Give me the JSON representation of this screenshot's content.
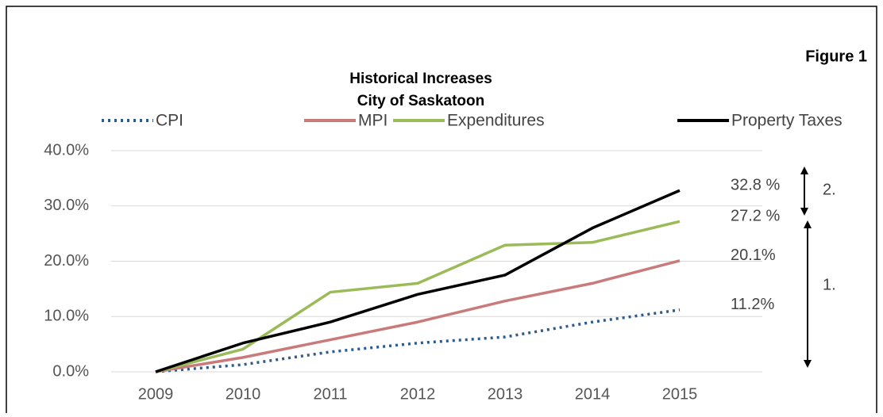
{
  "chart_data": {
    "type": "line",
    "figure_label": "Figure 1",
    "title": "Historical Increases",
    "subtitle": "City of Saskatoon",
    "categories": [
      "2009",
      "2010",
      "2011",
      "2012",
      "2013",
      "2014",
      "2015"
    ],
    "series": [
      {
        "name": "CPI",
        "color": "#2e5a8c",
        "style": "dotted",
        "values": [
          0,
          1.3,
          3.6,
          5.2,
          6.3,
          9.0,
          11.2
        ],
        "value_labels": [
          null,
          null,
          null,
          null,
          null,
          null,
          "11.2%"
        ]
      },
      {
        "name": "MPI",
        "color": "#c97b7b",
        "style": "solid",
        "values": [
          0,
          2.6,
          5.8,
          9.0,
          12.8,
          16.0,
          20.1
        ],
        "value_labels": [
          null,
          null,
          null,
          null,
          null,
          null,
          "20.1%"
        ]
      },
      {
        "name": "Expenditures",
        "color": "#9bbb59",
        "style": "solid",
        "values": [
          0,
          4.1,
          14.4,
          16.0,
          22.9,
          23.4,
          27.2
        ],
        "value_labels": [
          null,
          null,
          null,
          null,
          null,
          null,
          "27.2 %"
        ]
      },
      {
        "name": "Property Taxes",
        "color": "#000000",
        "style": "solid",
        "values": [
          0,
          5.2,
          9.0,
          14.0,
          17.5,
          26.0,
          32.8
        ],
        "value_labels": [
          null,
          null,
          null,
          null,
          null,
          null,
          "32.8 %"
        ]
      }
    ],
    "ylim": [
      0,
      40
    ],
    "yticks": [
      {
        "value": 0,
        "label": "0.0%"
      },
      {
        "value": 10,
        "label": "10.0%"
      },
      {
        "value": 20,
        "label": "20.0%"
      },
      {
        "value": 30,
        "label": "30.0%"
      },
      {
        "value": 40,
        "label": "40.0%"
      }
    ],
    "grid": true,
    "annotations": [
      "2.",
      "1."
    ]
  }
}
